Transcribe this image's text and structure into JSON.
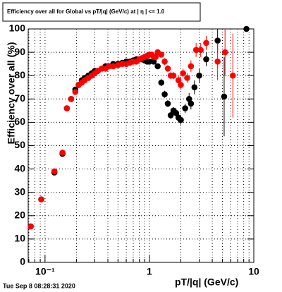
{
  "chart_data": {
    "type": "scatter",
    "title": "Efficiency over all for Global vs pT/|q| (GeV/c) at | η | <= 1.0",
    "x_label": "pT/|q| (GeV/c)",
    "y_label": "Efficiency over all (%)",
    "footer": "Tue Sep  8 08:28:31 2020",
    "log_x": true,
    "grid": true,
    "xlim": [
      0.069,
      10
    ],
    "ylim": [
      0,
      100
    ],
    "xticks": [
      {
        "value": 0.1,
        "label": "10⁻¹"
      },
      1,
      10
    ],
    "xminorticks": [
      0.07,
      0.08,
      0.09,
      0.2,
      0.3,
      0.4,
      0.5,
      0.6,
      0.7,
      0.8,
      0.9,
      2,
      3,
      4,
      5,
      6,
      7,
      8,
      9
    ],
    "yticks": [
      0,
      10,
      20,
      30,
      40,
      50,
      60,
      70,
      80,
      90,
      100
    ],
    "series": [
      {
        "color": "#000000",
        "x": [
          0.073,
          0.092,
          0.123,
          0.147,
          0.162,
          0.178,
          0.195,
          0.21,
          0.225,
          0.24,
          0.26,
          0.28,
          0.3,
          0.32,
          0.35,
          0.38,
          0.41,
          0.45,
          0.5,
          0.55,
          0.6,
          0.65,
          0.7,
          0.75,
          0.8,
          0.85,
          0.9,
          0.95,
          1.0,
          1.1,
          1.2,
          1.3,
          1.4,
          1.5,
          1.6,
          1.7,
          1.8,
          1.9,
          2.0,
          2.2,
          2.4,
          2.5,
          2.7,
          3.0,
          3.5,
          4.5,
          5.2,
          8.5
        ],
        "values": [
          15.4,
          27,
          38.5,
          46.5,
          66,
          70,
          74,
          76,
          78,
          79,
          80,
          81,
          82,
          82,
          83,
          84,
          84,
          85,
          85,
          85.5,
          86,
          86,
          86.5,
          87,
          87,
          87,
          86.5,
          86,
          86,
          86,
          84,
          77,
          72,
          68,
          63,
          65,
          64,
          62,
          61,
          66,
          70,
          68,
          75,
          80,
          87,
          95,
          71,
          100
        ],
        "errors": [
          1,
          1,
          1,
          1,
          1,
          1,
          1,
          1,
          0.5,
          0.5,
          0.5,
          0.5,
          0.5,
          0.5,
          0.5,
          0.5,
          0.5,
          0.5,
          0.5,
          0.5,
          0.5,
          0.5,
          0.5,
          0.5,
          0.5,
          0.5,
          0.5,
          0.5,
          1,
          1,
          1,
          1.5,
          1.5,
          1.5,
          1.5,
          1.5,
          2,
          2,
          2,
          2,
          2.5,
          2.5,
          3,
          3,
          3,
          5,
          17,
          0
        ]
      },
      {
        "color": "#ff0000",
        "x": [
          0.073,
          0.092,
          0.123,
          0.147,
          0.162,
          0.178,
          0.195,
          0.21,
          0.225,
          0.24,
          0.26,
          0.28,
          0.3,
          0.32,
          0.35,
          0.38,
          0.41,
          0.45,
          0.5,
          0.55,
          0.6,
          0.65,
          0.7,
          0.75,
          0.8,
          0.85,
          0.9,
          0.95,
          1.0,
          1.05,
          1.1,
          1.15,
          1.2,
          1.3,
          1.4,
          1.5,
          1.6,
          1.7,
          1.9,
          2.0,
          2.1,
          2.3,
          2.5,
          2.8,
          3.1,
          3.5,
          4.5,
          5.3,
          6.3
        ],
        "values": [
          15.4,
          27,
          39,
          47,
          66,
          70,
          73,
          76,
          77,
          78,
          79,
          80,
          81,
          82,
          83,
          83,
          84,
          84,
          84.5,
          85,
          85,
          85.5,
          86,
          86,
          87,
          87.5,
          88,
          88.5,
          89,
          89,
          88,
          88,
          90,
          89,
          86,
          83,
          80,
          80,
          78,
          76,
          81,
          79,
          84,
          91,
          91,
          94,
          86,
          90,
          80
        ],
        "errors": [
          1,
          1,
          1,
          1,
          1,
          1,
          1,
          1,
          0.5,
          0.5,
          0.5,
          0.5,
          0.5,
          0.5,
          0.5,
          0.5,
          0.5,
          0.5,
          0.5,
          0.5,
          0.5,
          0.5,
          0.5,
          0.5,
          0.5,
          0.5,
          0.5,
          0.5,
          1,
          1,
          1,
          1,
          1,
          1,
          1.5,
          1.5,
          1.5,
          1.5,
          2,
          2,
          2,
          2,
          2.5,
          3,
          3,
          3,
          8,
          10,
          18
        ]
      }
    ]
  }
}
